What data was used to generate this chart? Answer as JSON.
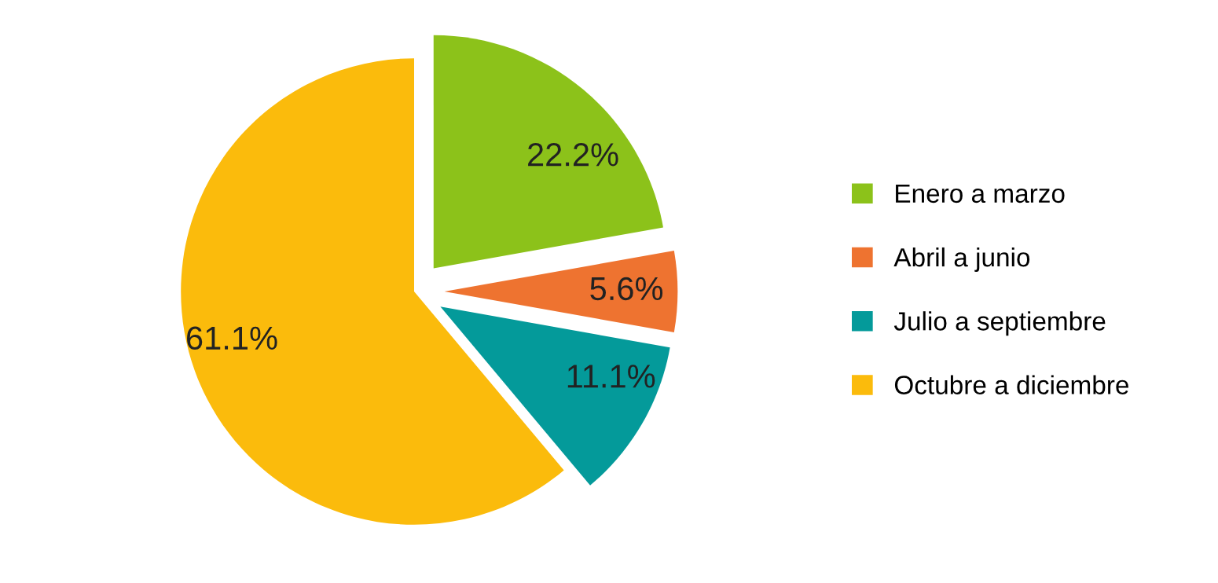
{
  "chart_data": {
    "type": "pie",
    "categories": [
      "Enero a marzo",
      "Abril a junio",
      "Julio a septiembre",
      "Octubre a diciembre"
    ],
    "values": [
      22.2,
      5.6,
      11.1,
      61.1
    ],
    "colors": [
      "#8cc21a",
      "#ee7330",
      "#049a9a",
      "#fbbb0c"
    ],
    "value_labels": [
      "22.2%",
      "5.6%",
      "11.1%",
      "61.1%"
    ],
    "legend": "right"
  }
}
